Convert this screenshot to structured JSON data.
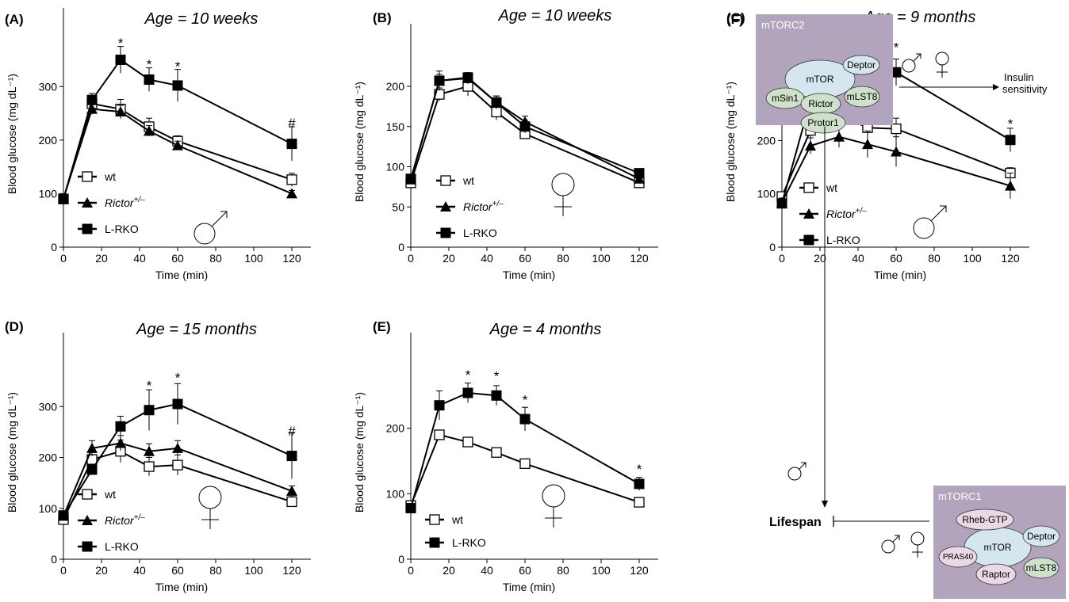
{
  "colors": {
    "line": "#000000",
    "open_marker_fill": "#ffffff",
    "complex_box": "#b2a4bd",
    "mtor_node": "#d6e6ee",
    "green_node": "#cfe0cb",
    "pink_node": "#ead8e4"
  },
  "chart_data": [
    {
      "id": "A",
      "type": "line",
      "panel": "(A)",
      "title": "Age = 10 weeks",
      "xlabel": "Time (min)",
      "ylabel": "Blood glucose (mg dL⁻¹)",
      "xlim": [
        0,
        130
      ],
      "ylim": [
        0,
        350
      ],
      "xticks": [
        0,
        20,
        40,
        60,
        80,
        100,
        120
      ],
      "yticks": [
        0,
        100,
        200,
        300
      ],
      "x": [
        0,
        15,
        30,
        45,
        60,
        120
      ],
      "series": [
        {
          "name": "wt",
          "marker": "open-square",
          "values": [
            90,
            268,
            258,
            225,
            198,
            126
          ],
          "err": [
            8,
            12,
            18,
            16,
            10,
            12
          ]
        },
        {
          "name": "Rictor",
          "sup": "+/–",
          "marker": "triangle",
          "values": [
            91,
            258,
            253,
            217,
            190,
            100
          ],
          "err": [
            8,
            10,
            12,
            10,
            8,
            6
          ]
        },
        {
          "name": "L-RKO",
          "marker": "filled-square",
          "values": [
            90,
            275,
            350,
            313,
            302,
            193
          ],
          "err": [
            8,
            12,
            25,
            22,
            30,
            32
          ]
        }
      ],
      "sig_labels": [
        {
          "x": 30,
          "label": "*",
          "y": 382
        },
        {
          "x": 45,
          "label": "*",
          "y": 342
        },
        {
          "x": 60,
          "label": "*",
          "y": 338
        },
        {
          "x": 120,
          "label": "#",
          "y": 232
        }
      ],
      "sex": "male",
      "legend_pos": "lower-left"
    },
    {
      "id": "B",
      "type": "line",
      "panel": "(B)",
      "title": "Age = 10 weeks",
      "xlabel": "Time (min)",
      "ylabel": "Blood glucose (mg dL⁻¹)",
      "xlim": [
        0,
        130
      ],
      "ylim": [
        0,
        225
      ],
      "xticks": [
        0,
        20,
        40,
        60,
        80,
        100,
        120
      ],
      "yticks": [
        0,
        50,
        100,
        150,
        200
      ],
      "x": [
        0,
        15,
        30,
        45,
        60,
        120
      ],
      "series": [
        {
          "name": "wt",
          "marker": "open-square",
          "values": [
            80,
            190,
            200,
            168,
            141,
            80
          ],
          "err": [
            5,
            8,
            12,
            10,
            6,
            3
          ]
        },
        {
          "name": "Rictor",
          "sup": "+/–",
          "marker": "triangle",
          "values": [
            84,
            207,
            210,
            180,
            156,
            85
          ],
          "err": [
            5,
            8,
            7,
            8,
            7,
            3
          ]
        },
        {
          "name": "L-RKO",
          "marker": "filled-square",
          "values": [
            85,
            207,
            211,
            180,
            150,
            92
          ],
          "err": [
            5,
            12,
            6,
            8,
            8,
            3
          ]
        }
      ],
      "sig_labels": [],
      "sex": "female",
      "legend_pos": "lower-left"
    },
    {
      "id": "C",
      "type": "line",
      "panel": "(C)",
      "title": "Age = 9 months",
      "xlabel": "Time (min)",
      "ylabel": "Blood glucose (mg dL⁻¹)",
      "xlim": [
        0,
        130
      ],
      "ylim": [
        0,
        360
      ],
      "xticks": [
        0,
        20,
        40,
        60,
        80,
        100,
        120
      ],
      "yticks": [
        0,
        100,
        200,
        300
      ],
      "x": [
        0,
        15,
        30,
        45,
        60,
        120
      ],
      "series": [
        {
          "name": "wt",
          "marker": "open-square",
          "values": [
            95,
            219,
            248,
            224,
            222,
            139
          ],
          "err": [
            8,
            18,
            20,
            15,
            20,
            10
          ]
        },
        {
          "name": "Rictor",
          "sup": "+/–",
          "marker": "triangle",
          "values": [
            84,
            190,
            207,
            193,
            179,
            115
          ],
          "err": [
            8,
            15,
            20,
            25,
            28,
            24
          ]
        },
        {
          "name": "L-RKO",
          "marker": "filled-square",
          "values": [
            82,
            275,
            330,
            338,
            328,
            201
          ],
          "err": [
            8,
            10,
            12,
            28,
            25,
            22
          ]
        }
      ],
      "sig_labels": [
        {
          "x": 15,
          "label": "*",
          "y": 300
        },
        {
          "x": 30,
          "label": "*",
          "y": 352
        },
        {
          "x": 45,
          "label": "*",
          "y": 375
        },
        {
          "x": 60,
          "label": "*",
          "y": 375
        },
        {
          "x": 120,
          "label": "*",
          "y": 232
        }
      ],
      "sex": "male",
      "legend_pos": "lower-left"
    },
    {
      "id": "D",
      "type": "line",
      "panel": "(D)",
      "title": "Age = 15 months",
      "xlabel": "Time (min)",
      "ylabel": "Blood glucose (mg dL⁻¹)",
      "xlim": [
        0,
        130
      ],
      "ylim": [
        0,
        340
      ],
      "xticks": [
        0,
        20,
        40,
        60,
        80,
        100,
        120
      ],
      "yticks": [
        0,
        100,
        200,
        300
      ],
      "x": [
        0,
        15,
        30,
        45,
        60,
        120
      ],
      "series": [
        {
          "name": "wt",
          "marker": "open-square",
          "values": [
            78,
            196,
            212,
            182,
            185,
            113
          ],
          "err": [
            6,
            20,
            22,
            18,
            20,
            10
          ]
        },
        {
          "name": "Rictor",
          "sup": "+/–",
          "marker": "triangle",
          "values": [
            85,
            218,
            228,
            212,
            218,
            134
          ],
          "err": [
            6,
            15,
            15,
            15,
            15,
            10
          ]
        },
        {
          "name": "L-RKO",
          "marker": "filled-square",
          "values": [
            86,
            176,
            261,
            293,
            305,
            203
          ],
          "err": [
            6,
            10,
            20,
            40,
            40,
            45
          ]
        }
      ],
      "sig_labels": [
        {
          "x": 45,
          "label": "*",
          "y": 342
        },
        {
          "x": 60,
          "label": "*",
          "y": 357
        },
        {
          "x": 120,
          "label": "#",
          "y": 252
        }
      ],
      "sex": "female",
      "legend_pos": "lower-left"
    },
    {
      "id": "E",
      "type": "line",
      "panel": "(E)",
      "title": "Age = 4 months",
      "xlabel": "Time (min)",
      "ylabel": "Blood glucose (mg dL⁻¹)",
      "xlim": [
        0,
        130
      ],
      "ylim": [
        0,
        290
      ],
      "xticks": [
        0,
        20,
        40,
        60,
        80,
        100,
        120
      ],
      "yticks": [
        0,
        100,
        200
      ],
      "x": [
        0,
        15,
        30,
        45,
        60,
        120
      ],
      "series": [
        {
          "name": "wt",
          "marker": "open-square",
          "values": [
            82,
            190,
            179,
            163,
            146,
            87
          ],
          "err": [
            4,
            4,
            4,
            4,
            4,
            6
          ]
        },
        {
          "name": "L-RKO",
          "marker": "filled-square",
          "values": [
            78,
            235,
            254,
            250,
            214,
            115
          ],
          "err": [
            4,
            22,
            15,
            15,
            18,
            10
          ]
        }
      ],
      "sig_labels": [
        {
          "x": 30,
          "label": "*",
          "y": 282
        },
        {
          "x": 45,
          "label": "*",
          "y": 280
        },
        {
          "x": 60,
          "label": "*",
          "y": 244
        },
        {
          "x": 120,
          "label": "*",
          "y": 138
        }
      ],
      "sex": "female",
      "legend_pos": "lower-left"
    }
  ],
  "diagram": {
    "panel": "(F)",
    "mtorc2": {
      "title": "mTORC2",
      "nodes": [
        "mTOR",
        "Deptor",
        "mSin1",
        "mLST8",
        "Rictor",
        "Protor1"
      ]
    },
    "mtorc1": {
      "title": "mTORC1",
      "nodes": [
        "Rheb-GTP",
        "Deptor",
        "PRAS40",
        "mTOR",
        "mLST8",
        "Raptor"
      ]
    },
    "insulin_label": "Insulin sensitivity",
    "lifespan_label": "Lifespan"
  }
}
